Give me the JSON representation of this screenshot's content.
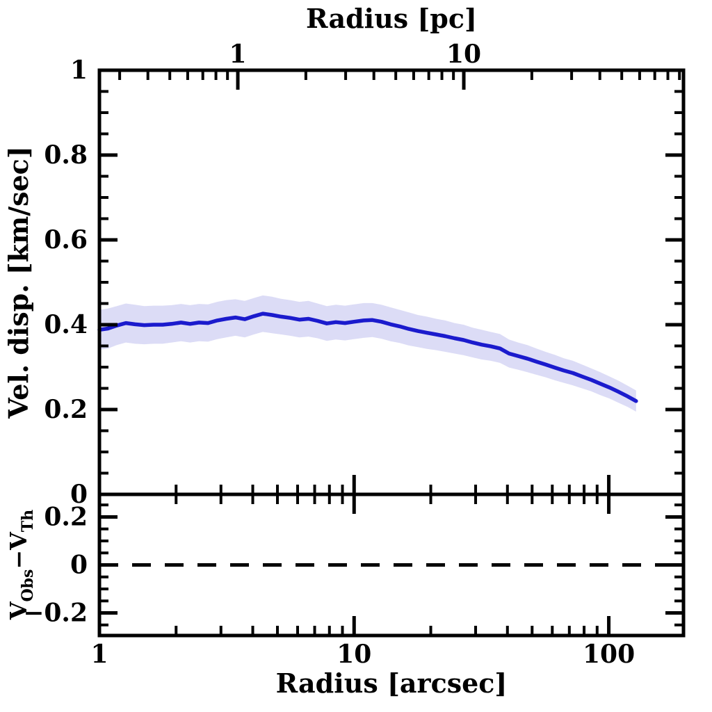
{
  "figure": {
    "background": "#ffffff",
    "frame_color": "#000000",
    "text_color": "#000000"
  },
  "chart_data": {
    "type": "line",
    "x_top_axis": {
      "label": "Radius [pc]",
      "scale": "log",
      "lim": [
        0.2441,
        93.8
      ],
      "major_ticks": [
        1,
        10
      ],
      "tick_labels": [
        "1",
        "10"
      ]
    },
    "x_bottom_axis": {
      "label": "Radius [arcsec]",
      "scale": "log",
      "lim": [
        1,
        196.5
      ],
      "major_ticks": [
        1,
        10,
        100
      ],
      "tick_labels": [
        "1",
        "10",
        "100"
      ]
    },
    "panels": [
      {
        "name": "velocity-dispersion-panel",
        "ylabel": "Vel. disp. [km/sec]",
        "ylim": [
          0,
          1
        ],
        "major_ticks": [
          0,
          0.2,
          0.4,
          0.6,
          0.8,
          1
        ],
        "tick_labels": [
          "0",
          "0.2",
          "0.4",
          "0.6",
          "0.8",
          "1"
        ],
        "minor_tick_step": 0.05,
        "grid": false,
        "series": [
          {
            "name": "velocity-dispersion-profile",
            "style": "solid",
            "color": "#1b1bcd",
            "band_color": "#dcdcf6",
            "r_arcsec": [
              1.0,
              1.08,
              1.17,
              1.27,
              1.38,
              1.5,
              1.63,
              1.77,
              1.92,
              2.09,
              2.27,
              2.46,
              2.67,
              2.9,
              3.15,
              3.42,
              3.72,
              4.04,
              4.38,
              4.76,
              5.17,
              5.61,
              6.1,
              6.62,
              7.19,
              7.81,
              8.48,
              9.21,
              10.0,
              10.9,
              11.8,
              12.8,
              13.9,
              15.1,
              16.4,
              17.8,
              19.3,
              21.0,
              22.8,
              24.8,
              26.9,
              29.2,
              31.7,
              34.4,
              37.4,
              40.6,
              44.1,
              47.9,
              52.0,
              56.5,
              61.3,
              66.6,
              72.3,
              78.5,
              85.3,
              92.6,
              100.6,
              109.2,
              118.6,
              128.0
            ],
            "v_kms": [
              0.388,
              0.391,
              0.398,
              0.404,
              0.401,
              0.399,
              0.4,
              0.4,
              0.402,
              0.405,
              0.402,
              0.405,
              0.404,
              0.41,
              0.414,
              0.417,
              0.413,
              0.42,
              0.426,
              0.423,
              0.419,
              0.416,
              0.412,
              0.414,
              0.409,
              0.403,
              0.406,
              0.404,
              0.407,
              0.41,
              0.411,
              0.407,
              0.401,
              0.396,
              0.39,
              0.385,
              0.381,
              0.377,
              0.373,
              0.368,
              0.364,
              0.358,
              0.353,
              0.349,
              0.344,
              0.332,
              0.326,
              0.32,
              0.313,
              0.306,
              0.299,
              0.292,
              0.286,
              0.278,
              0.27,
              0.261,
              0.252,
              0.242,
              0.231,
              0.22
            ],
            "band_halfwidth_kms": [
              0.047,
              0.047,
              0.046,
              0.046,
              0.046,
              0.045,
              0.045,
              0.045,
              0.044,
              0.044,
              0.044,
              0.044,
              0.044,
              0.044,
              0.044,
              0.043,
              0.043,
              0.043,
              0.043,
              0.043,
              0.042,
              0.042,
              0.042,
              0.042,
              0.041,
              0.041,
              0.041,
              0.041,
              0.041,
              0.041,
              0.04,
              0.04,
              0.04,
              0.039,
              0.039,
              0.038,
              0.038,
              0.037,
              0.037,
              0.036,
              0.036,
              0.035,
              0.035,
              0.034,
              0.034,
              0.033,
              0.032,
              0.032,
              0.031,
              0.03,
              0.03,
              0.029,
              0.029,
              0.028,
              0.027,
              0.027,
              0.026,
              0.026,
              0.025,
              0.025
            ]
          }
        ]
      },
      {
        "name": "residual-panel",
        "ylabel_rich": [
          {
            "t": "V",
            "sub": false
          },
          {
            "t": "Obs",
            "sub": true
          },
          {
            "t": "−",
            "sub": false
          },
          {
            "t": "V",
            "sub": false
          },
          {
            "t": "Th",
            "sub": true
          }
        ],
        "ylim": [
          -0.294,
          0.294
        ],
        "major_ticks": [
          -0.2,
          0,
          0.2
        ],
        "tick_labels": [
          "−0.2",
          "0",
          "0.2"
        ],
        "minor_tick_step": 0.05,
        "grid": false,
        "zero_line": {
          "value": 0,
          "style": "dashed",
          "color": "#000000"
        }
      }
    ]
  }
}
